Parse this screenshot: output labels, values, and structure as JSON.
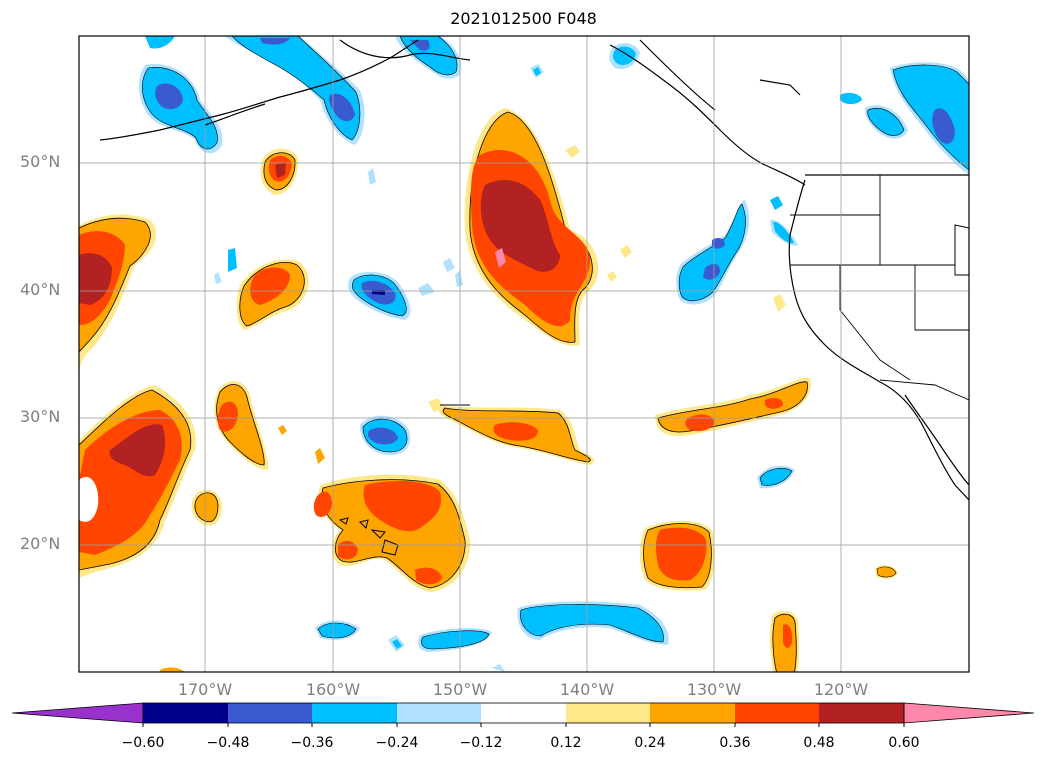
{
  "map": {
    "title": "2021012500 F048",
    "lat_labels": [
      "50°N",
      "40°N",
      "30°N",
      "20°N"
    ],
    "lon_labels": [
      "170°W",
      "160°W",
      "150°W",
      "140°W",
      "130°W",
      "120°W"
    ]
  },
  "colorbar": {
    "tick_labels": [
      "−0.60",
      "−0.48",
      "−0.36",
      "−0.24",
      "−0.12",
      "0.12",
      "0.24",
      "0.36",
      "0.48",
      "0.60"
    ],
    "colors": [
      "#9932cc",
      "#00008b",
      "#3a5bd0",
      "#00bfff",
      "#b0e2ff",
      "#ffffff",
      "#ffe88a",
      "#ffa500",
      "#ff4500",
      "#b22222",
      "#ff88aa"
    ]
  },
  "colors": {
    "purple": "#9932cc",
    "navy": "#00008b",
    "blue": "#3a5bd0",
    "sky": "#00bfff",
    "light_sky": "#b0e2ff",
    "light_yellow": "#ffe88a",
    "orange": "#ffa500",
    "orange_red": "#ff4500",
    "dark_red": "#b22222",
    "pink": "#ff88aa"
  }
}
